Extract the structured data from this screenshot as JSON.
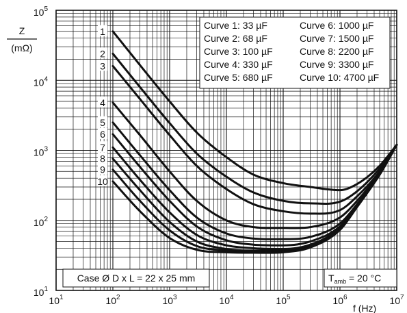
{
  "chart_data": {
    "type": "line",
    "x_scale": "log",
    "y_scale": "log",
    "xlim": [
      10,
      10000000
    ],
    "ylim": [
      10,
      100000
    ],
    "grid": true,
    "ylabel_top": "Z",
    "ylabel_bottom": "(mΩ)",
    "xlabel": "f (Hz)",
    "x_ticks": [
      {
        "base": "10",
        "exp": "1"
      },
      {
        "base": "10",
        "exp": "2"
      },
      {
        "base": "10",
        "exp": "3"
      },
      {
        "base": "10",
        "exp": "4"
      },
      {
        "base": "10",
        "exp": "5"
      },
      {
        "base": "10",
        "exp": "6"
      },
      {
        "base": "10",
        "exp": "7"
      }
    ],
    "y_ticks": [
      {
        "base": "10",
        "exp": "1"
      },
      {
        "base": "10",
        "exp": "2"
      },
      {
        "base": "10",
        "exp": "3"
      },
      {
        "base": "10",
        "exp": "4"
      },
      {
        "base": "10",
        "exp": "5"
      }
    ],
    "legend": [
      "Curve 1: 33 µF",
      "Curve 2: 68 µF",
      "Curve 3: 100 µF",
      "Curve 4: 330 µF",
      "Curve 5: 680 µF",
      "Curve 6: 1000 µF",
      "Curve 7: 1500 µF",
      "Curve 8: 2200 µF",
      "Curve 9: 3300 µF",
      "Curve 10: 4700 µF"
    ],
    "annotations": {
      "case": "Case Ø D x L = 22 x 25 mm",
      "tamb_prefix": "T",
      "tamb_sub": "amb",
      "tamb_suffix": " = 20 °C"
    },
    "series": [
      {
        "name": "1",
        "x": [
          100,
          300,
          1000,
          3000,
          10000,
          30000,
          100000,
          300000,
          1000000,
          2000000,
          5000000,
          10000000
        ],
        "y": [
          50000,
          16500,
          5000,
          1800,
          800,
          450,
          340,
          300,
          270,
          330,
          600,
          1200
        ]
      },
      {
        "name": "2",
        "x": [
          100,
          300,
          1000,
          3000,
          10000,
          30000,
          100000,
          300000,
          1000000,
          2000000,
          5000000,
          10000000
        ],
        "y": [
          24000,
          8000,
          2450,
          900,
          420,
          250,
          190,
          175,
          185,
          260,
          550,
          1200
        ]
      },
      {
        "name": "3",
        "x": [
          100,
          300,
          1000,
          3000,
          10000,
          30000,
          100000,
          300000,
          1000000,
          2000000,
          5000000,
          10000000
        ],
        "y": [
          16000,
          5400,
          1650,
          600,
          280,
          170,
          135,
          125,
          140,
          220,
          500,
          1200
        ]
      },
      {
        "name": "4",
        "x": [
          100,
          300,
          1000,
          3000,
          10000,
          30000,
          100000,
          300000,
          1000000,
          2000000,
          5000000,
          10000000
        ],
        "y": [
          4800,
          1650,
          500,
          190,
          100,
          80,
          78,
          80,
          110,
          190,
          480,
          1200
        ]
      },
      {
        "name": "5",
        "x": [
          100,
          300,
          1000,
          3000,
          10000,
          30000,
          100000,
          300000,
          1000000,
          2000000,
          5000000,
          10000000
        ],
        "y": [
          2500,
          850,
          270,
          110,
          65,
          55,
          54,
          58,
          90,
          170,
          460,
          1200
        ]
      },
      {
        "name": "6",
        "x": [
          100,
          300,
          1000,
          3000,
          10000,
          30000,
          100000,
          300000,
          1000000,
          2000000,
          5000000,
          10000000
        ],
        "y": [
          1700,
          580,
          190,
          82,
          52,
          45,
          44,
          50,
          82,
          165,
          455,
          1200
        ]
      },
      {
        "name": "7",
        "x": [
          100,
          300,
          1000,
          3000,
          10000,
          30000,
          100000,
          300000,
          1000000,
          2000000,
          5000000,
          10000000
        ],
        "y": [
          1100,
          380,
          130,
          62,
          44,
          40,
          39,
          45,
          78,
          160,
          450,
          1200
        ]
      },
      {
        "name": "8",
        "x": [
          100,
          300,
          1000,
          3000,
          10000,
          30000,
          100000,
          300000,
          1000000,
          2000000,
          5000000,
          10000000
        ],
        "y": [
          760,
          270,
          95,
          50,
          39,
          37,
          37,
          43,
          75,
          158,
          450,
          1200
        ]
      },
      {
        "name": "9",
        "x": [
          100,
          300,
          1000,
          3000,
          10000,
          30000,
          100000,
          300000,
          1000000,
          2000000,
          5000000,
          10000000
        ],
        "y": [
          530,
          190,
          72,
          43,
          37,
          36,
          36,
          42,
          74,
          156,
          450,
          1200
        ]
      },
      {
        "name": "10",
        "x": [
          100,
          300,
          1000,
          3000,
          10000,
          30000,
          100000,
          300000,
          1000000,
          2000000,
          5000000,
          10000000
        ],
        "y": [
          360,
          135,
          56,
          38,
          35,
          34.5,
          35,
          41,
          73,
          155,
          450,
          1200
        ]
      }
    ]
  }
}
